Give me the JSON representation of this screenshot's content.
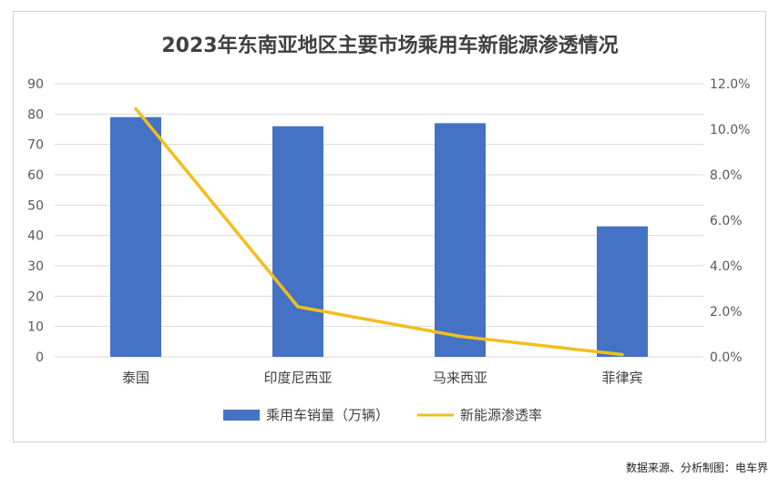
{
  "chart_data": {
    "type": "bar",
    "title": "2023年东南亚地区主要市场乘用车新能源渗透情况",
    "categories": [
      "泰国",
      "印度尼西亚",
      "马来西亚",
      "菲律宾"
    ],
    "series": [
      {
        "name": "乘用车销量（万辆）",
        "type": "bar",
        "axis": "left",
        "values": [
          79,
          76,
          77,
          43
        ],
        "color": "#4472C4"
      },
      {
        "name": "新能源渗透率",
        "type": "line",
        "axis": "right",
        "values": [
          10.9,
          2.2,
          0.9,
          0.1
        ],
        "color": "#F2BE1D"
      }
    ],
    "y_left": {
      "range": [
        0,
        90
      ],
      "ticks": [
        "0",
        "10",
        "20",
        "30",
        "40",
        "50",
        "60",
        "70",
        "80",
        "90"
      ]
    },
    "y_right": {
      "range": [
        0,
        12
      ],
      "ticks": [
        "0.0%",
        "2.0%",
        "4.0%",
        "6.0%",
        "8.0%",
        "10.0%",
        "12.0%"
      ]
    },
    "grid": true,
    "legend": "bottom"
  },
  "source_note": "数据来源、分析制图：电车界"
}
